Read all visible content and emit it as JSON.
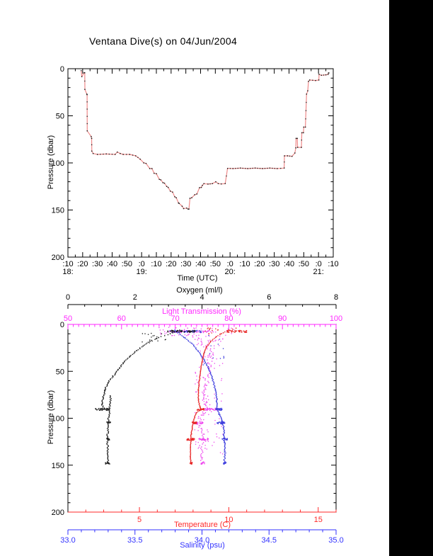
{
  "window": {
    "background": "#ffffff",
    "right_band": {
      "x": 550,
      "width": 62,
      "color": "#000000"
    }
  },
  "header": {
    "title": "Ventana Dive(s) on 04/Jun/2004"
  },
  "chart_data": [
    {
      "id": "dive-depth-vs-time",
      "type": "line",
      "title": "Ventana Dive(s) on 04/Jun/2004",
      "xlabel": "Time (UTC)",
      "ylabel": "Pressure (dbar)",
      "x_unit": "minutes after 18:00 UTC",
      "xlim": [
        10,
        190
      ],
      "ylim": [
        0,
        200
      ],
      "y_inverted": true,
      "grid": false,
      "x_major_ticks": [
        {
          "t": 10,
          "label": ":10",
          "hour": "18:"
        },
        {
          "t": 20,
          "label": ":20"
        },
        {
          "t": 30,
          "label": ":30"
        },
        {
          "t": 40,
          "label": ":40"
        },
        {
          "t": 50,
          "label": ":50"
        },
        {
          "t": 60,
          "label": ":0",
          "hour": "19:"
        },
        {
          "t": 70,
          "label": ":10"
        },
        {
          "t": 80,
          "label": ":20"
        },
        {
          "t": 90,
          "label": ":30"
        },
        {
          "t": 100,
          "label": ":40"
        },
        {
          "t": 110,
          "label": ":50"
        },
        {
          "t": 120,
          "label": ":0",
          "hour": "20:"
        },
        {
          "t": 130,
          "label": ":10"
        },
        {
          "t": 140,
          "label": ":20"
        },
        {
          "t": 150,
          "label": ":30"
        },
        {
          "t": 160,
          "label": ":40"
        },
        {
          "t": 170,
          "label": ":50"
        },
        {
          "t": 180,
          "label": ":0",
          "hour": "21:"
        },
        {
          "t": 190,
          "label": ":10"
        }
      ],
      "x_minor_step": 5,
      "y_major_ticks": [
        0,
        50,
        100,
        150,
        200
      ],
      "y_minor_step": 10,
      "line_color": "#ef8a8a",
      "marker_color": "#1c1c1c",
      "points": [
        [
          19,
          2
        ],
        [
          19.4,
          8.5
        ],
        [
          21,
          4.3
        ],
        [
          21.4,
          4.3
        ],
        [
          21.5,
          22
        ],
        [
          22.8,
          27
        ],
        [
          23,
          27.5
        ],
        [
          23.1,
          66
        ],
        [
          25.8,
          72
        ],
        [
          26.1,
          74
        ],
        [
          26.2,
          87.5
        ],
        [
          27.1,
          90
        ],
        [
          30,
          91
        ],
        [
          36,
          90.5
        ],
        [
          42,
          91
        ],
        [
          43.5,
          88.5
        ],
        [
          45.5,
          90
        ],
        [
          47.5,
          91
        ],
        [
          51.9,
          91
        ],
        [
          56,
          92.5
        ],
        [
          59,
          96
        ],
        [
          61.5,
          100
        ],
        [
          63,
          100.5
        ],
        [
          65.5,
          106
        ],
        [
          67,
          106
        ],
        [
          68.5,
          111
        ],
        [
          70,
          111.5
        ],
        [
          72,
          117.5
        ],
        [
          73,
          118
        ],
        [
          74.5,
          121
        ],
        [
          75.5,
          121.5
        ],
        [
          77,
          125
        ],
        [
          78,
          126
        ],
        [
          79.5,
          130
        ],
        [
          81,
          131
        ],
        [
          82.5,
          136
        ],
        [
          83.5,
          137
        ],
        [
          85,
          142.5
        ],
        [
          85.5,
          143
        ],
        [
          87.5,
          146
        ],
        [
          88.5,
          148.5
        ],
        [
          90.5,
          148
        ],
        [
          91.5,
          149
        ],
        [
          92.1,
          149
        ],
        [
          92.8,
          137.6
        ],
        [
          94,
          137
        ],
        [
          96,
          133.8
        ],
        [
          97.5,
          133
        ],
        [
          99.3,
          126.3
        ],
        [
          100.5,
          126
        ],
        [
          101.2,
          123.8
        ],
        [
          102.3,
          122
        ],
        [
          105,
          122.5
        ],
        [
          108,
          122
        ],
        [
          110.3,
          120
        ],
        [
          112,
          122
        ],
        [
          114,
          122.3
        ],
        [
          116.7,
          122
        ],
        [
          118.3,
          105.8
        ],
        [
          122,
          106
        ],
        [
          127,
          105.5
        ],
        [
          132,
          106
        ],
        [
          137,
          105.5
        ],
        [
          142,
          106
        ],
        [
          147,
          105.5
        ],
        [
          152,
          106
        ],
        [
          156.7,
          105.5
        ],
        [
          156.9,
          92.5
        ],
        [
          159,
          92.5
        ],
        [
          162,
          93
        ],
        [
          164,
          89.5
        ],
        [
          164.6,
          84
        ],
        [
          164.8,
          74
        ],
        [
          165.6,
          74
        ],
        [
          165.8,
          83.5
        ],
        [
          168.4,
          83.5
        ],
        [
          168.7,
          68
        ],
        [
          169.8,
          68
        ],
        [
          170,
          62
        ],
        [
          171.1,
          62
        ],
        [
          171.9,
          27
        ],
        [
          172.7,
          23.5
        ],
        [
          173.2,
          13.5
        ],
        [
          174,
          12
        ],
        [
          178,
          12.5
        ],
        [
          180.2,
          12
        ],
        [
          180.4,
          6
        ],
        [
          182,
          7
        ],
        [
          185,
          6.5
        ],
        [
          186.5,
          6
        ],
        [
          186.8,
          4.5
        ],
        [
          187.1,
          4.5
        ]
      ]
    },
    {
      "id": "ctd-scatter-vs-pressure",
      "type": "scatter",
      "ylabel": "Pressure (dbar)",
      "ylim": [
        0,
        200
      ],
      "y_inverted": true,
      "y_major_ticks": [
        0,
        50,
        100,
        150,
        200
      ],
      "y_minor_step": 10,
      "axes": {
        "oxygen": {
          "label": "Oxygen (ml/l)",
          "color": "#000000",
          "lim": [
            0,
            8
          ],
          "major_ticks": [
            0,
            2,
            4,
            6,
            8
          ],
          "tick_labels": [
            "0",
            "2",
            "4",
            "6",
            "8"
          ],
          "minor_step": 0.5,
          "position": "floating-above-top"
        },
        "light": {
          "label": "Light Transmission (%)",
          "color": "#ff2aff",
          "lim": [
            50,
            100
          ],
          "major_ticks": [
            50,
            60,
            70,
            80,
            90,
            100
          ],
          "tick_labels": [
            "50",
            "60",
            "70",
            "80",
            "90",
            "100"
          ],
          "minor_step": 1,
          "position": "plot-top-frame"
        },
        "temperature": {
          "label": "Temperature (C)",
          "color": "#ff2a2a",
          "lim": [
            1,
            16
          ],
          "major_ticks": [
            5,
            10,
            15
          ],
          "tick_labels": [
            "5",
            "10",
            "15"
          ],
          "minor_step": 1,
          "position": "plot-bottom-frame"
        },
        "salinity": {
          "label": "Salinity (psu)",
          "color": "#3232ff",
          "lim": [
            33.0,
            35.0
          ],
          "major_ticks": [
            33.0,
            33.5,
            34.0,
            34.5,
            35.0
          ],
          "tick_labels": [
            "33.0",
            "33.5",
            "34.0",
            "34.5",
            "35.0"
          ],
          "minor_step": 0.1,
          "position": "floating-below-bottom"
        }
      },
      "series": [
        {
          "name": "light_transmission",
          "axis": "light",
          "color": "#ee46ee",
          "profile": [
            [
              72.5,
              4
            ],
            [
              71.5,
              7
            ],
            [
              73.5,
              12
            ],
            [
              75,
              18
            ],
            [
              76.2,
              26
            ],
            [
              76.6,
              35
            ],
            [
              76.4,
              45
            ],
            [
              76,
              55
            ],
            [
              75.6,
              65
            ],
            [
              75.4,
              75
            ],
            [
              75.6,
              85
            ],
            [
              76.2,
              90
            ],
            [
              75.2,
              95
            ],
            [
              74.6,
              100
            ],
            [
              74.3,
              105
            ],
            [
              74.8,
              111
            ],
            [
              75.2,
              117
            ],
            [
              75.4,
              123
            ],
            [
              75.1,
              132
            ],
            [
              75,
              142
            ],
            [
              75.1,
              148
            ]
          ],
          "profile_step": 1.5,
          "value_jitter": 0.9,
          "dwells": [
            {
              "p": 7.5,
              "v": [
                68.5,
                77
              ],
              "n": 42
            },
            {
              "p": 90.5,
              "v": [
                75.5,
                78
              ],
              "n": 36
            },
            {
              "p": 105,
              "v": [
                73.5,
                75.2
              ],
              "n": 32
            },
            {
              "p": 122.5,
              "v": [
                74.5,
                76.2
              ],
              "n": 26
            },
            {
              "p": 148,
              "v": [
                74.8,
                75.5
              ],
              "n": 12
            }
          ],
          "clouds": [
            {
              "v": [
                73.5,
                79
              ],
              "p": [
                8,
                140
              ],
              "n": 115
            },
            {
              "v": [
                67,
                83
              ],
              "p": [
                3,
                12
              ],
              "n": 42
            }
          ]
        },
        {
          "name": "salinity",
          "axis": "salinity",
          "color": "#3a3add",
          "profile": [
            [
              33.8,
              6
            ],
            [
              33.82,
              9
            ],
            [
              33.87,
              14
            ],
            [
              33.92,
              20
            ],
            [
              33.97,
              28
            ],
            [
              34.01,
              37
            ],
            [
              34.05,
              47
            ],
            [
              34.08,
              58
            ],
            [
              34.1,
              70
            ],
            [
              34.11,
              82
            ],
            [
              34.115,
              90
            ],
            [
              34.13,
              96
            ],
            [
              34.15,
              103
            ],
            [
              34.16,
              110
            ],
            [
              34.165,
              118
            ],
            [
              34.17,
              126
            ],
            [
              34.17,
              136
            ],
            [
              34.17,
              148
            ]
          ],
          "profile_step": 1,
          "value_jitter": 0.008,
          "dwells": [
            {
              "p": 7.5,
              "v": [
                33.76,
                34.0
              ],
              "n": 40
            },
            {
              "p": 90.5,
              "v": [
                34.1,
                34.15
              ],
              "n": 28
            },
            {
              "p": 105,
              "v": [
                34.11,
                34.17
              ],
              "n": 28
            },
            {
              "p": 122.5,
              "v": [
                34.15,
                34.19
              ],
              "n": 18
            },
            {
              "p": 148,
              "v": [
                34.16,
                34.18
              ],
              "n": 10
            }
          ],
          "clouds": [
            {
              "v": [
                34.0,
                34.18
              ],
              "p": [
                10,
                45
              ],
              "n": 14
            }
          ]
        },
        {
          "name": "temperature",
          "axis": "temperature",
          "color": "#e82828",
          "profile": [
            [
              10.4,
              4
            ],
            [
              10,
              6
            ],
            [
              9.7,
              9
            ],
            [
              9.3,
              13
            ],
            [
              9,
              18
            ],
            [
              8.75,
              24
            ],
            [
              8.6,
              31
            ],
            [
              8.5,
              40
            ],
            [
              8.42,
              50
            ],
            [
              8.35,
              60
            ],
            [
              8.3,
              70
            ],
            [
              8.3,
              80
            ],
            [
              8.38,
              88
            ],
            [
              8.45,
              90.5
            ],
            [
              8.2,
              94
            ],
            [
              8.08,
              99
            ],
            [
              8,
              105
            ],
            [
              7.95,
              111
            ],
            [
              7.9,
              117
            ],
            [
              7.87,
              122
            ],
            [
              7.86,
              131
            ],
            [
              7.85,
              141
            ],
            [
              7.87,
              148.5
            ]
          ],
          "profile_step": 1,
          "value_jitter": 0.03,
          "dwells": [
            {
              "p": 7.5,
              "v": [
                9.9,
                11.0
              ],
              "n": 46
            },
            {
              "p": 90.5,
              "v": [
                8.2,
                8.62
              ],
              "n": 28
            },
            {
              "p": 105,
              "v": [
                7.95,
                8.2
              ],
              "n": 22
            },
            {
              "p": 122.5,
              "v": [
                7.65,
                8.08
              ],
              "n": 36
            },
            {
              "p": 148,
              "v": [
                7.8,
                7.95
              ],
              "n": 12
            }
          ],
          "clouds": [
            {
              "v": [
                8.6,
                9.6
              ],
              "p": [
                3,
                12
              ],
              "n": 15
            }
          ]
        },
        {
          "name": "oxygen",
          "axis": "oxygen",
          "color": "#1a1a1a",
          "profile": [
            [
              3.35,
              6
            ],
            [
              3.05,
              10
            ],
            [
              2.7,
              14
            ],
            [
              2.45,
              18
            ],
            [
              2.25,
              23
            ],
            [
              2.05,
              28
            ],
            [
              1.85,
              34
            ],
            [
              1.65,
              41
            ],
            [
              1.5,
              48
            ],
            [
              1.35,
              55
            ],
            [
              1.2,
              62
            ],
            [
              1.1,
              70
            ],
            [
              1.05,
              78
            ],
            [
              1.02,
              85
            ],
            [
              1.05,
              89
            ]
          ],
          "profile2": [
            [
              1.27,
              76
            ],
            [
              1.25,
              90
            ],
            [
              1.2,
              105
            ],
            [
              1.18,
              122
            ],
            [
              1.2,
              148
            ]
          ],
          "profile_step": 1,
          "value_jitter": 0.035,
          "dwells": [
            {
              "p": 7.5,
              "v": [
                2.96,
                3.8
              ],
              "n": 50
            },
            {
              "p": 90.5,
              "v": [
                0.82,
                1.24
              ],
              "n": 40
            },
            {
              "p": 105,
              "v": [
                1.16,
                1.3
              ],
              "n": 10
            },
            {
              "p": 122.5,
              "v": [
                1.14,
                1.24
              ],
              "n": 8
            },
            {
              "p": 148,
              "v": [
                1.12,
                1.26
              ],
              "n": 12
            }
          ],
          "clouds": [
            {
              "v": [
                2.2,
                3.0
              ],
              "p": [
                9,
                20
              ],
              "n": 18
            }
          ]
        }
      ]
    }
  ]
}
